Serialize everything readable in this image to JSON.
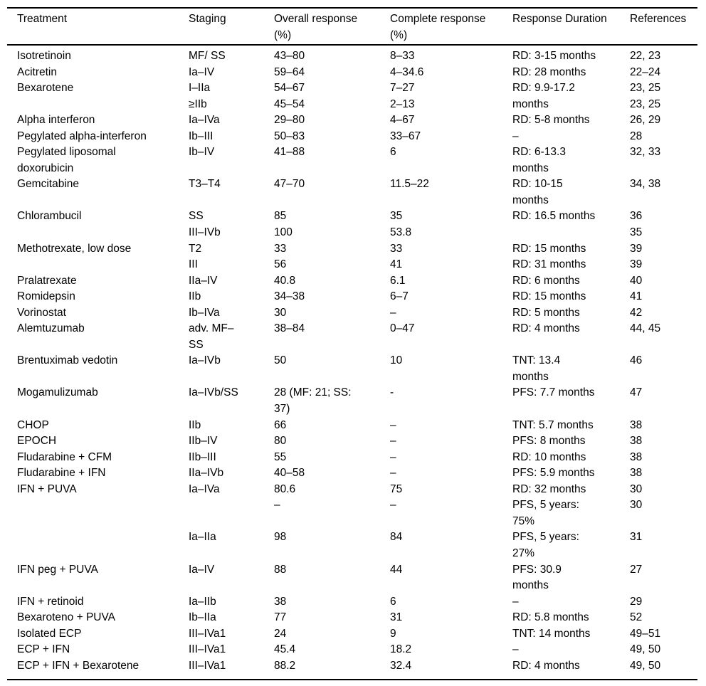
{
  "page": {
    "background": "#ffffff",
    "text_color": "#000000"
  },
  "table": {
    "headers": [
      "Treatment",
      "Staging",
      "Overall response\n(%)",
      "Complete response\n(%)",
      "Response Duration",
      "References"
    ],
    "rows": [
      [
        "Isotretinoin",
        "MF/ SS",
        "43–80",
        "8–33",
        "RD: 3-15 months",
        "22, 23"
      ],
      [
        "Acitretin",
        "Ia–IV",
        "59–64",
        "4–34.6",
        "RD: 28 months",
        "22–24"
      ],
      [
        "Bexarotene",
        "I–IIa",
        "54–67",
        "7–27",
        "RD: 9.9-17.2",
        "23, 25"
      ],
      [
        "",
        "≥IIb",
        "45–54",
        "2–13",
        "months",
        "23, 25"
      ],
      [
        "Alpha interferon",
        "Ia–IVa",
        "29–80",
        "4–67",
        "RD: 5-8 months",
        "26, 29"
      ],
      [
        "Pegylated alpha-interferon",
        "Ib–III",
        "50–83",
        "33–67",
        "–",
        "28"
      ],
      [
        "Pegylated liposomal",
        "Ib–IV",
        "41–88",
        "6",
        "RD: 6-13.3",
        "32, 33"
      ],
      [
        "doxorubicin",
        "",
        "",
        "",
        "months",
        ""
      ],
      [
        "Gemcitabine",
        "T3–T4",
        "47–70",
        "11.5–22",
        "RD: 10-15",
        "34, 38"
      ],
      [
        "",
        "",
        "",
        "",
        "months",
        ""
      ],
      [
        "Chlorambucil",
        "SS",
        "85",
        "35",
        "RD: 16.5 months",
        "36"
      ],
      [
        "",
        "III–IVb",
        "100",
        "53.8",
        "",
        "35"
      ],
      [
        "Methotrexate, low dose",
        "T2",
        "33",
        "33",
        "RD: 15 months",
        "39"
      ],
      [
        "",
        "III",
        "56",
        "41",
        "RD: 31 months",
        "39"
      ],
      [
        "Pralatrexate",
        "IIa–IV",
        "40.8",
        "6.1",
        "RD: 6 months",
        "40"
      ],
      [
        "Romidepsin",
        "IIb",
        "34–38",
        "6–7",
        "RD: 15 months",
        "41"
      ],
      [
        "Vorinostat",
        "Ib–IVa",
        "30",
        "–",
        "RD: 5 months",
        "42"
      ],
      [
        "Alemtuzumab",
        "adv. MF–",
        "38–84",
        "0–47",
        "RD: 4 months",
        "44, 45"
      ],
      [
        "",
        "SS",
        "",
        "",
        "",
        ""
      ],
      [
        "Brentuximab vedotin",
        "Ia–IVb",
        "50",
        "10",
        "TNT: 13.4",
        "46"
      ],
      [
        "",
        "",
        "",
        "",
        "months",
        ""
      ],
      [
        "Mogamulizumab",
        "Ia–IVb/SS",
        "28 (MF: 21; SS:",
        "-",
        "PFS: 7.7 months",
        "47"
      ],
      [
        "",
        "",
        "37)",
        "",
        "",
        ""
      ],
      [
        "CHOP",
        "IIb",
        "66",
        "–",
        "TNT: 5.7 months",
        "38"
      ],
      [
        "EPOCH",
        "IIb–IV",
        "80",
        "–",
        "PFS: 8 months",
        "38"
      ],
      [
        "Fludarabine + CFM",
        "IIb–III",
        "55",
        "–",
        "RD: 10 months",
        "38"
      ],
      [
        "Fludarabine + IFN",
        "IIa–IVb",
        "40–58",
        "–",
        "PFS: 5.9 months",
        "38"
      ],
      [
        "IFN + PUVA",
        "Ia–IVa",
        "80.6",
        "75",
        "RD: 32 months",
        "30"
      ],
      [
        "",
        "",
        "–",
        "–",
        "PFS, 5 years:",
        "30"
      ],
      [
        "",
        "",
        "",
        "",
        "75%",
        ""
      ],
      [
        "",
        "Ia–IIa",
        "98",
        "84",
        "PFS, 5 years:",
        "31"
      ],
      [
        "",
        "",
        "",
        "",
        "27%",
        ""
      ],
      [
        "IFN peg + PUVA",
        "Ia–IV",
        "88",
        "44",
        "PFS: 30.9",
        "27"
      ],
      [
        "",
        "",
        "",
        "",
        "months",
        ""
      ],
      [
        "IFN + retinoid",
        "Ia–IIb",
        "38",
        "6",
        "–",
        "29"
      ],
      [
        "Bexaroteno + PUVA",
        "Ib–IIa",
        "77",
        "31",
        "RD: 5.8 months",
        "52"
      ],
      [
        "Isolated ECP",
        "III–IVa1",
        "24",
        "9",
        "TNT: 14 months",
        "49–51"
      ],
      [
        "ECP + IFN",
        "III–IVa1",
        "45.4",
        "18.2",
        "–",
        "49, 50"
      ],
      [
        "ECP + IFN + Bexarotene",
        "III–IVa1",
        "88.2",
        "32.4",
        "RD: 4 months",
        "49, 50"
      ]
    ]
  }
}
